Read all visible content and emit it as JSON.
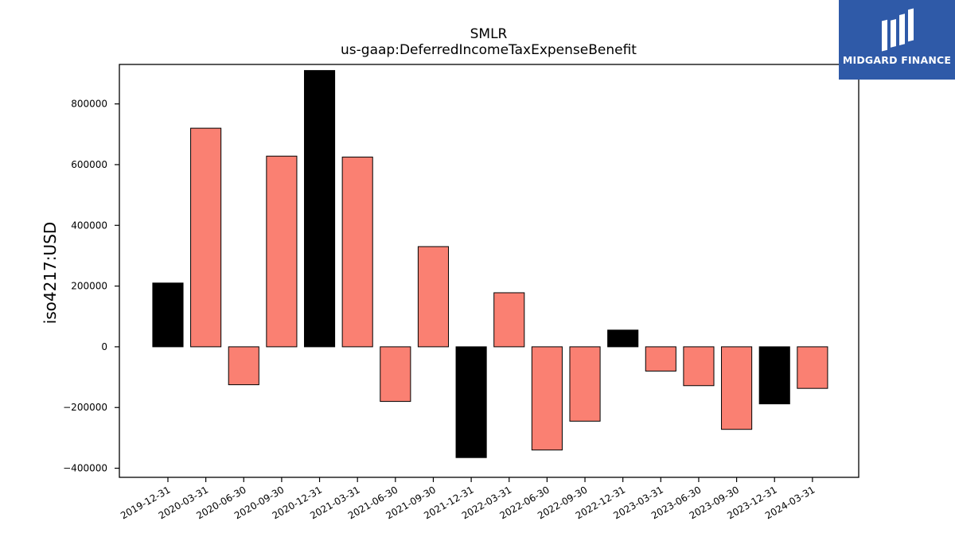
{
  "chart_data": {
    "type": "bar",
    "title": "SMLR",
    "subtitle": "us-gaap:DeferredIncomeTaxExpenseBenefit",
    "ylabel": "iso4217:USD",
    "xlabel": "",
    "ylim": [
      -430000,
      930000
    ],
    "yticks": [
      -400000,
      -200000,
      0,
      200000,
      400000,
      600000,
      800000
    ],
    "ytick_labels": [
      "−400000",
      "−200000",
      "0",
      "200000",
      "400000",
      "600000",
      "800000"
    ],
    "grid": false,
    "categories": [
      "2019-12-31",
      "2020-03-31",
      "2020-06-30",
      "2020-09-30",
      "2020-12-31",
      "2021-03-31",
      "2021-06-30",
      "2021-09-30",
      "2021-12-31",
      "2022-03-31",
      "2022-06-30",
      "2022-09-30",
      "2022-12-31",
      "2023-03-31",
      "2023-06-30",
      "2023-09-30",
      "2023-12-31",
      "2024-03-31"
    ],
    "values": [
      210000,
      720000,
      -125000,
      628000,
      910000,
      625000,
      -180000,
      330000,
      -365000,
      178000,
      -340000,
      -245000,
      55000,
      -80000,
      -128000,
      -272000,
      -188000,
      -137000
    ],
    "bar_colors": [
      "#000000",
      "#fa8072",
      "#fa8072",
      "#fa8072",
      "#000000",
      "#fa8072",
      "#fa8072",
      "#fa8072",
      "#000000",
      "#fa8072",
      "#fa8072",
      "#fa8072",
      "#000000",
      "#fa8072",
      "#fa8072",
      "#fa8072",
      "#000000",
      "#fa8072"
    ]
  },
  "logo": {
    "text": "MIDGARD FINANCE",
    "background": "#2f5aa8"
  }
}
